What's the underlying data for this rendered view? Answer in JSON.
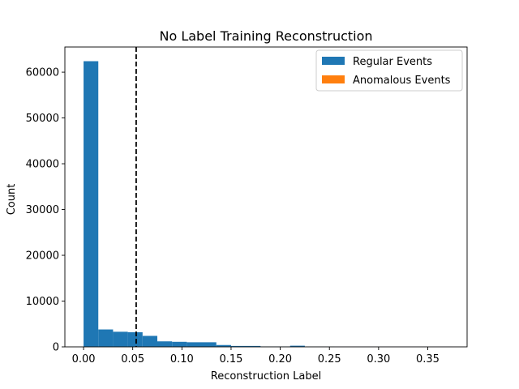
{
  "chart_data": {
    "type": "bar",
    "title": "No Label Training Reconstruction",
    "xlabel": "Reconstruction Label",
    "ylabel": "Count",
    "xlim": [
      -0.019,
      0.39
    ],
    "ylim": [
      0,
      65500
    ],
    "xticks": [
      "0.00",
      "0.05",
      "0.10",
      "0.15",
      "0.20",
      "0.25",
      "0.30",
      "0.35"
    ],
    "xtick_values": [
      0.0,
      0.05,
      0.1,
      0.15,
      0.2,
      0.25,
      0.3,
      0.35
    ],
    "yticks": [
      "0",
      "10000",
      "20000",
      "30000",
      "40000",
      "50000",
      "60000"
    ],
    "ytick_values": [
      0,
      10000,
      20000,
      30000,
      40000,
      50000,
      60000
    ],
    "threshold": 0.0535,
    "legend_position": "upper right",
    "series": [
      {
        "name": "Regular Events",
        "color": "#1f77b4",
        "bins": [
          {
            "x0": 0.0,
            "x1": 0.015,
            "count": 62400
          },
          {
            "x0": 0.015,
            "x1": 0.03,
            "count": 3800
          },
          {
            "x0": 0.03,
            "x1": 0.045,
            "count": 3300
          },
          {
            "x0": 0.045,
            "x1": 0.06,
            "count": 3200
          },
          {
            "x0": 0.06,
            "x1": 0.075,
            "count": 2400
          },
          {
            "x0": 0.075,
            "x1": 0.09,
            "count": 1200
          },
          {
            "x0": 0.09,
            "x1": 0.105,
            "count": 1100
          },
          {
            "x0": 0.105,
            "x1": 0.135,
            "count": 1000
          },
          {
            "x0": 0.135,
            "x1": 0.15,
            "count": 400
          },
          {
            "x0": 0.15,
            "x1": 0.18,
            "count": 200
          },
          {
            "x0": 0.18,
            "x1": 0.21,
            "count": 80
          },
          {
            "x0": 0.21,
            "x1": 0.225,
            "count": 250
          },
          {
            "x0": 0.225,
            "x1": 0.255,
            "count": 40
          },
          {
            "x0": 0.255,
            "x1": 0.375,
            "count": 20
          }
        ]
      },
      {
        "name": "Anomalous Events",
        "color": "#ff7f0e",
        "bins": []
      }
    ]
  }
}
